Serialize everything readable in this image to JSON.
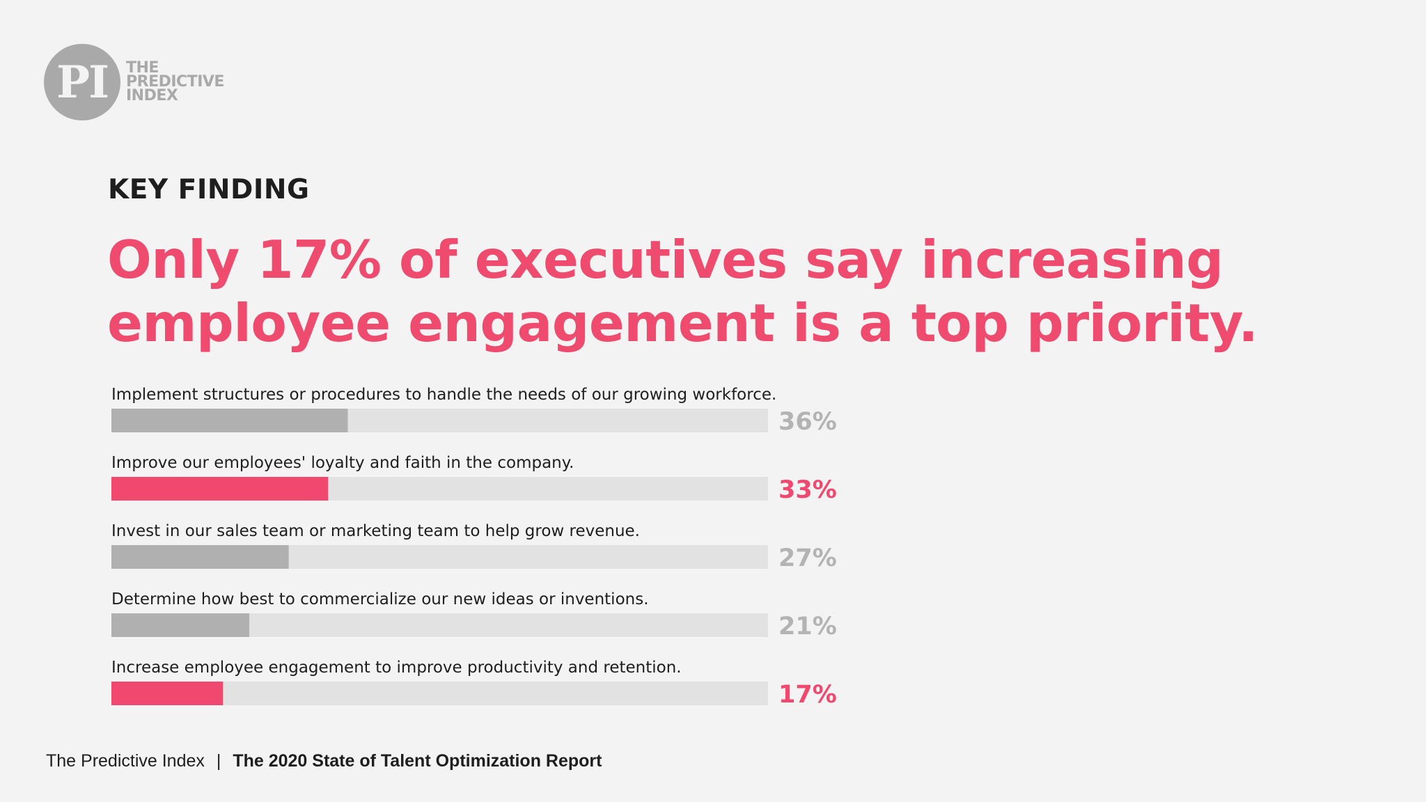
{
  "logo": {
    "monogram": "PI",
    "line1": "THE",
    "line2": "PREDICTIVE",
    "line3": "INDEX"
  },
  "kicker": "KEY FINDING",
  "headline": {
    "line1": "Only 17% of executives say increasing",
    "line2": "employee engagement is a top priority."
  },
  "colors": {
    "highlight": "#f0486e",
    "neutral": "#b0b0b0",
    "track": "#e2e2e2",
    "neutral_value": "#b3b3b3"
  },
  "chart_data": {
    "type": "bar",
    "orientation": "horizontal",
    "categories": [
      "Implement structures or procedures to handle the needs of our growing workforce.",
      "Improve our employees' loyalty and faith in the company.",
      "Invest in our sales team or marketing team to help grow revenue.",
      "Determine how best to commercialize our new ideas or inventions.",
      "Increase employee engagement to improve productivity and retention."
    ],
    "values": [
      36,
      33,
      27,
      21,
      17
    ],
    "value_labels": [
      "36%",
      "33%",
      "27%",
      "21%",
      "17%"
    ],
    "highlighted": [
      false,
      true,
      false,
      false,
      true
    ],
    "xlim": [
      0,
      100
    ],
    "grid": false
  },
  "footer": {
    "publisher": "The Predictive Index",
    "separator": "|",
    "report": "The 2020 State of Talent Optimization Report"
  }
}
